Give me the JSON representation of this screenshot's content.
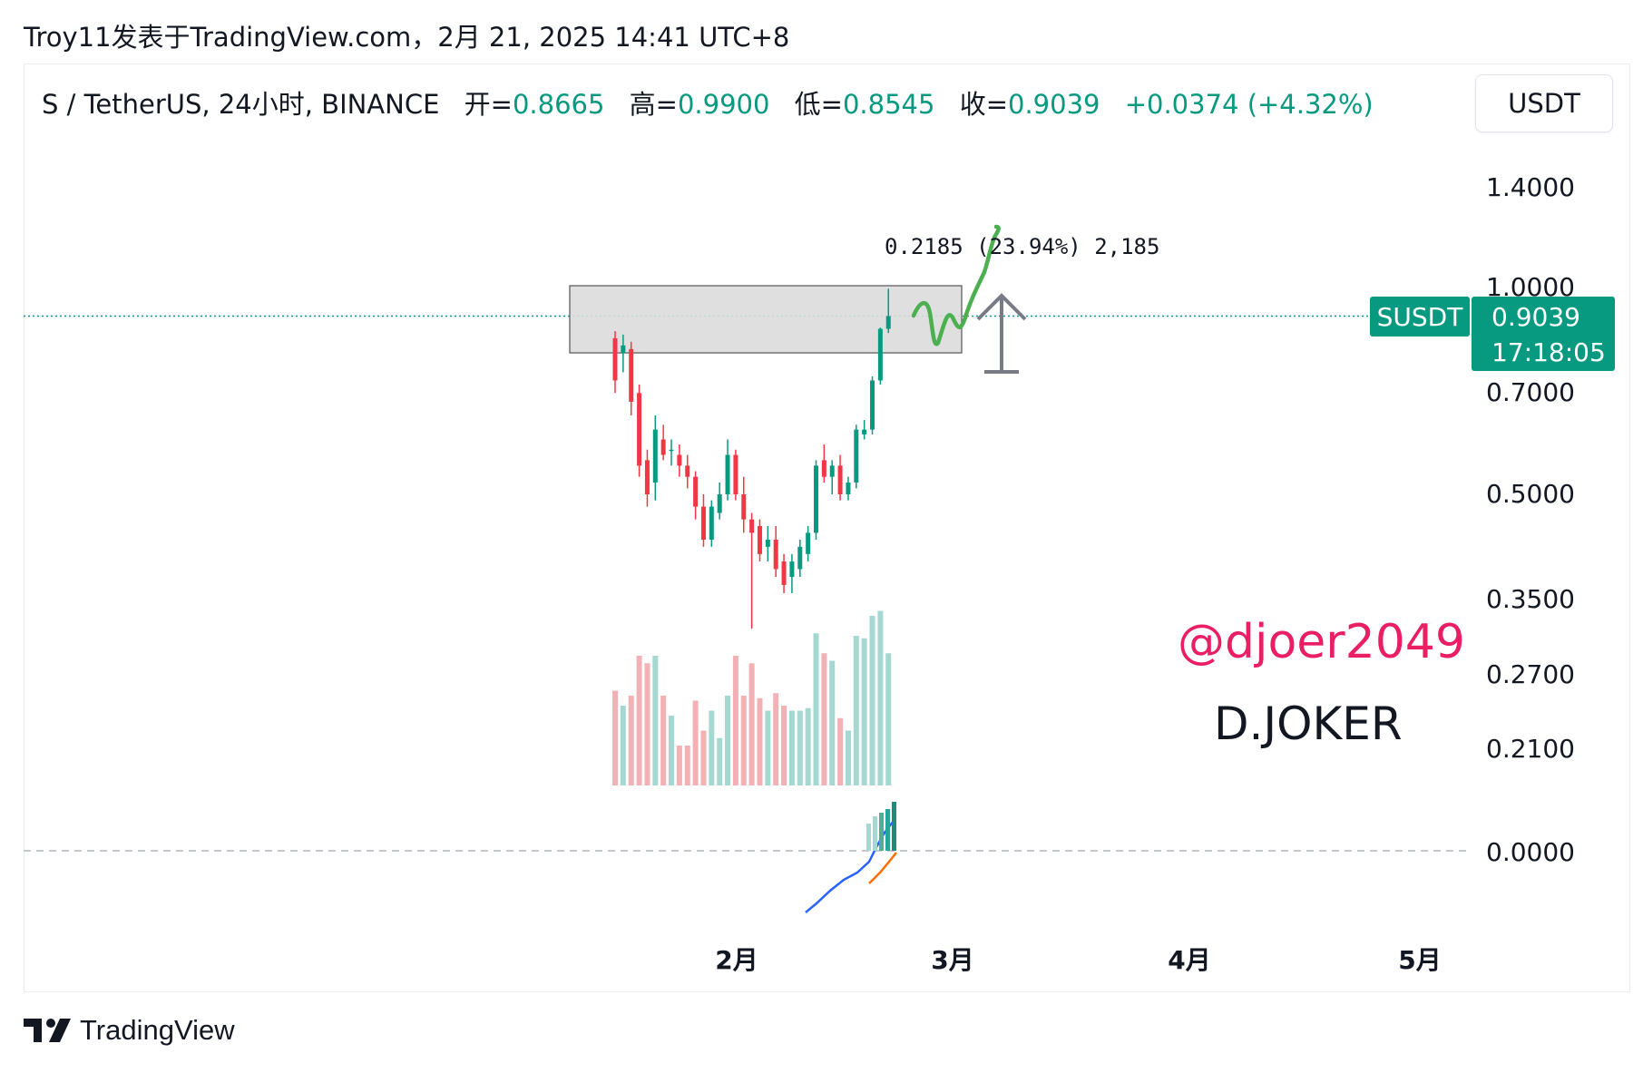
{
  "caption": "Troy11发表于TradingView.com，2月 21, 2025 14:41 UTC+8",
  "legend": {
    "symbol": "S / TetherUS, 24小时, BINANCE",
    "open_label": "开=",
    "open": "0.8665",
    "high_label": "高=",
    "high": "0.9900",
    "low_label": "低=",
    "low": "0.8545",
    "close_label": "收=",
    "close": "0.9039",
    "change": "+0.0374 (+4.32%)"
  },
  "unit_button": "USDT",
  "price_tag": {
    "symbol": "SUSDT",
    "price": "0.9039",
    "countdown": "17:18:05"
  },
  "measure_label": "0.2185 (23.94%) 2,185",
  "watermark": {
    "handle": "@djoer2049",
    "name": "D.JOKER"
  },
  "brand": "TradingView",
  "colors": {
    "up": "#089981",
    "down": "#f23645",
    "up_vol": "#a4d8d1",
    "down_vol": "#f3b1b5",
    "handle": "#e91e63",
    "drawing": "#4caf50",
    "macd": "#2962ff",
    "signal": "#ff6d00"
  },
  "chart_data": {
    "type": "candlestick",
    "y_scale": "log",
    "y_ticks": [
      "1.4000",
      "1.0000",
      "0.7000",
      "0.5000",
      "0.3500",
      "0.2700",
      "0.2100",
      "0.0000"
    ],
    "x_ticks": [
      "2月",
      "3月",
      "4月",
      "5月"
    ],
    "last_price": 0.9039,
    "zone": {
      "from": 0.8,
      "to": 1.0
    },
    "candles": [
      [
        0.84,
        0.86,
        0.7,
        0.73
      ],
      [
        0.8,
        0.85,
        0.75,
        0.82
      ],
      [
        0.81,
        0.83,
        0.65,
        0.68
      ],
      [
        0.7,
        0.72,
        0.53,
        0.55
      ],
      [
        0.56,
        0.58,
        0.48,
        0.5
      ],
      [
        0.52,
        0.65,
        0.49,
        0.62
      ],
      [
        0.6,
        0.63,
        0.56,
        0.57
      ],
      [
        0.58,
        0.6,
        0.55,
        0.58
      ],
      [
        0.57,
        0.59,
        0.53,
        0.55
      ],
      [
        0.55,
        0.57,
        0.51,
        0.53
      ],
      [
        0.53,
        0.54,
        0.46,
        0.48
      ],
      [
        0.48,
        0.5,
        0.42,
        0.43
      ],
      [
        0.43,
        0.49,
        0.42,
        0.48
      ],
      [
        0.47,
        0.52,
        0.46,
        0.5
      ],
      [
        0.5,
        0.6,
        0.49,
        0.57
      ],
      [
        0.57,
        0.58,
        0.49,
        0.5
      ],
      [
        0.5,
        0.53,
        0.44,
        0.46
      ],
      [
        0.46,
        0.47,
        0.32,
        0.44
      ],
      [
        0.45,
        0.46,
        0.4,
        0.41
      ],
      [
        0.42,
        0.45,
        0.4,
        0.43
      ],
      [
        0.43,
        0.45,
        0.38,
        0.39
      ],
      [
        0.4,
        0.41,
        0.36,
        0.37
      ],
      [
        0.38,
        0.41,
        0.36,
        0.4
      ],
      [
        0.39,
        0.43,
        0.38,
        0.42
      ],
      [
        0.41,
        0.45,
        0.4,
        0.44
      ],
      [
        0.44,
        0.56,
        0.43,
        0.55
      ],
      [
        0.56,
        0.59,
        0.52,
        0.53
      ],
      [
        0.53,
        0.56,
        0.5,
        0.55
      ],
      [
        0.55,
        0.57,
        0.49,
        0.5
      ],
      [
        0.5,
        0.53,
        0.49,
        0.52
      ],
      [
        0.52,
        0.63,
        0.51,
        0.62
      ],
      [
        0.61,
        0.64,
        0.6,
        0.62
      ],
      [
        0.62,
        0.74,
        0.61,
        0.73
      ],
      [
        0.73,
        0.87,
        0.72,
        0.8665
      ],
      [
        0.8665,
        0.99,
        0.8545,
        0.9039
      ]
    ],
    "volume": [
      38,
      32,
      36,
      52,
      49,
      52,
      36,
      28,
      16,
      16,
      34,
      22,
      30,
      19,
      36,
      52,
      36,
      49,
      35,
      30,
      37,
      32,
      30,
      30,
      31,
      61,
      53,
      50,
      27,
      22,
      60,
      59,
      68,
      70,
      53
    ]
  }
}
